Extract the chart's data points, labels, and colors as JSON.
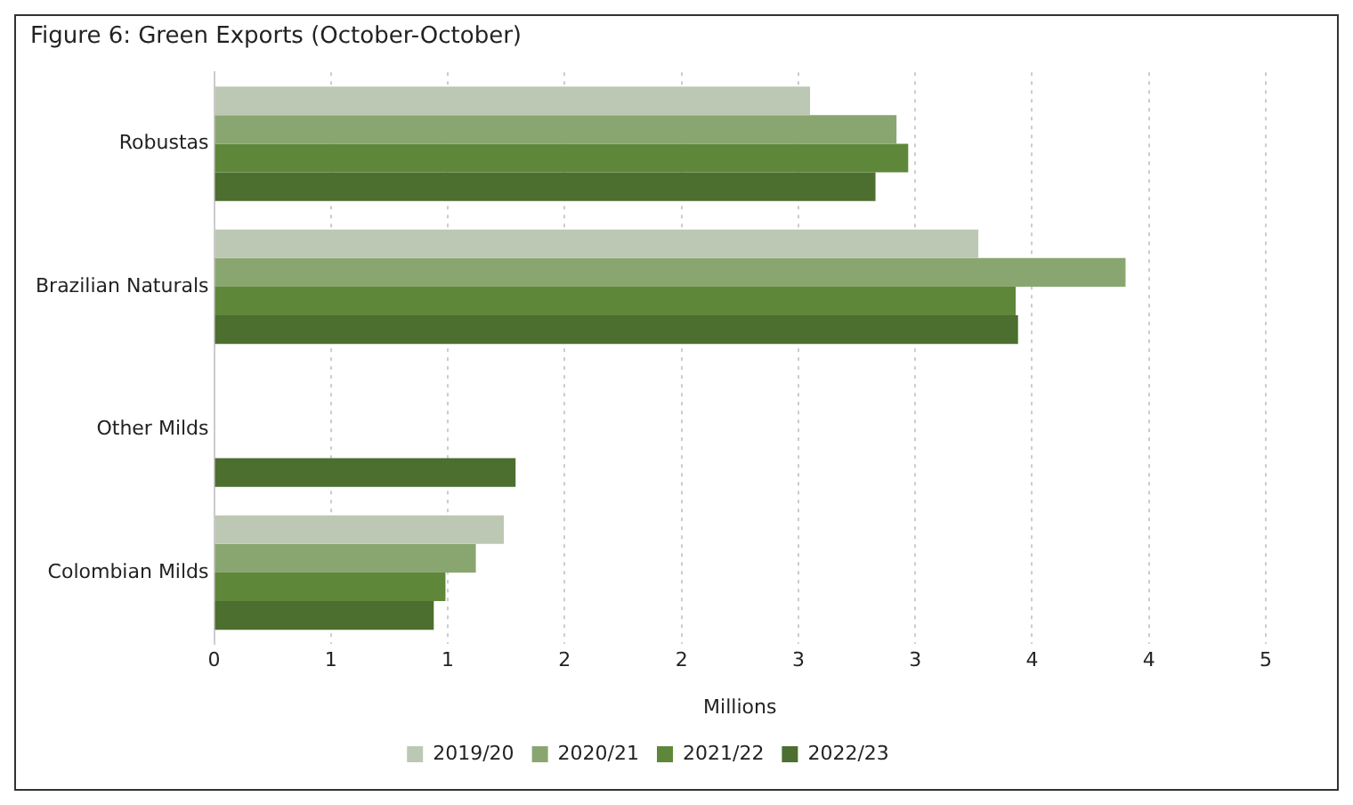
{
  "chart_data": {
    "type": "bar",
    "orientation": "horizontal",
    "title": "Figure 6: Green Exports (October-October)",
    "xlabel": "Millions",
    "categories": [
      "Robustas",
      "Brazilian Naturals",
      "Other Milds",
      "Colombian Milds"
    ],
    "series": [
      {
        "name": "2019/20",
        "color": "#bcc8b3",
        "values": [
          2.55,
          3.27,
          null,
          1.24
        ]
      },
      {
        "name": "2020/21",
        "color": "#8aa670",
        "values": [
          2.92,
          3.9,
          null,
          1.12
        ]
      },
      {
        "name": "2021/22",
        "color": "#5f873a",
        "values": [
          2.97,
          3.43,
          null,
          0.99
        ]
      },
      {
        "name": "2022/23",
        "color": "#4c6e2f",
        "values": [
          2.83,
          3.44,
          1.29,
          0.94
        ]
      }
    ],
    "xlim": [
      0,
      4.5
    ],
    "xticks": [
      0,
      {
        "value": 0.5,
        "label": "1"
      },
      1,
      {
        "value": 1.5,
        "label": "2"
      },
      2,
      {
        "value": 2.5,
        "label": "3"
      },
      3,
      {
        "value": 3.5,
        "label": "4"
      },
      4,
      {
        "value": 4.5,
        "label": "5"
      }
    ],
    "grid": "x",
    "legend": "bottom"
  }
}
